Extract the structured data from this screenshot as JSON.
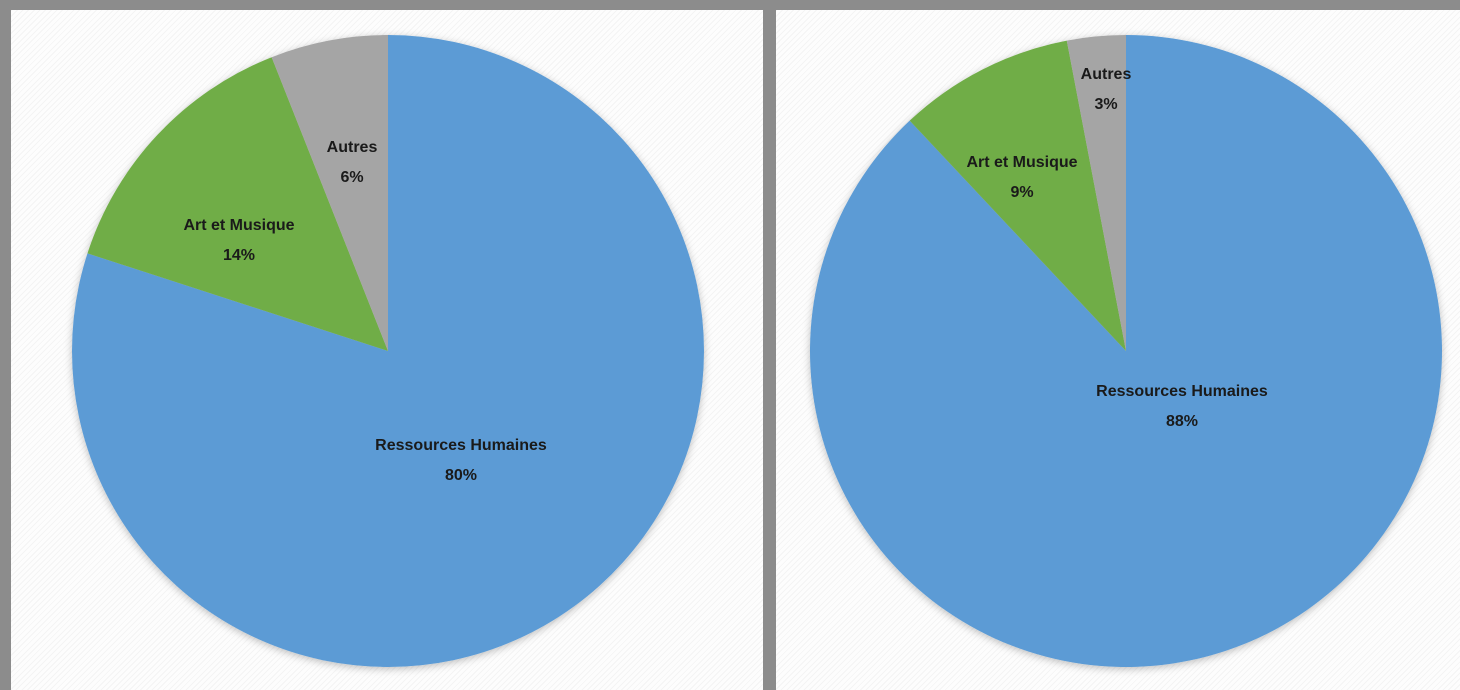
{
  "colors": {
    "ressources": "#5b9bd5",
    "art": "#70ad47",
    "autres": "#a5a5a5"
  },
  "chart_data": [
    {
      "type": "pie",
      "title": "",
      "slices": [
        {
          "label": "Ressources Humaines",
          "value": 80,
          "percent_label": "80%",
          "color": "#5b9bd5"
        },
        {
          "label": "Art et Musique",
          "value": 14,
          "percent_label": "14%",
          "color": "#70ad47"
        },
        {
          "label": "Autres",
          "value": 6,
          "percent_label": "6%",
          "color": "#a5a5a5"
        }
      ],
      "legend": "none",
      "start_angle": "12 o'clock, clockwise"
    },
    {
      "type": "pie",
      "title": "",
      "slices": [
        {
          "label": "Ressources Humaines",
          "value": 88,
          "percent_label": "88%",
          "color": "#5b9bd5"
        },
        {
          "label": "Art et Musique",
          "value": 9,
          "percent_label": "9%",
          "color": "#70ad47"
        },
        {
          "label": "Autres",
          "value": 3,
          "percent_label": "3%",
          "color": "#a5a5a5"
        }
      ],
      "legend": "none",
      "start_angle": "12 o'clock, clockwise"
    }
  ]
}
